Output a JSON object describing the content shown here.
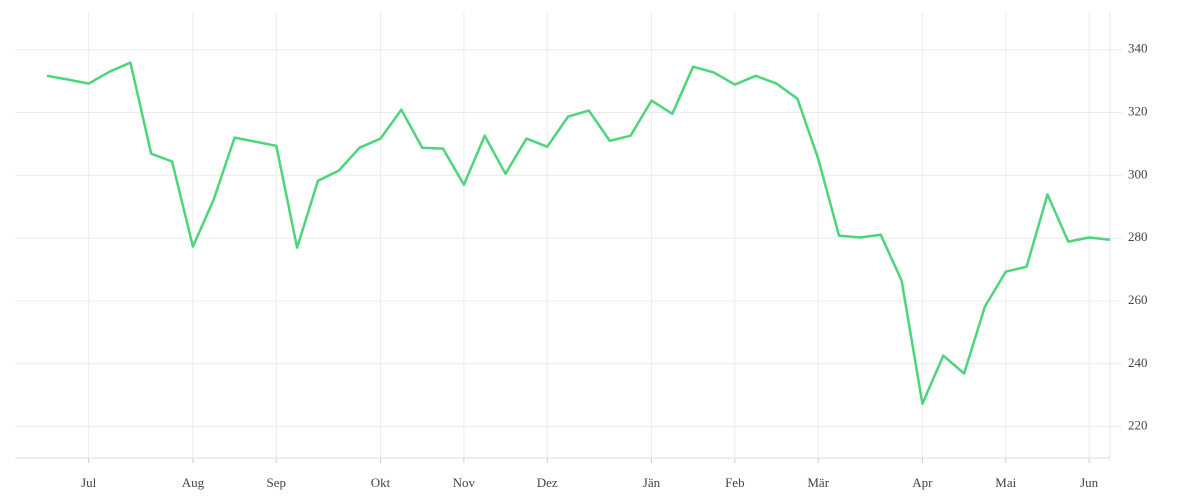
{
  "chart_data": {
    "type": "line",
    "categories": [
      null,
      null,
      "Jul",
      null,
      null,
      null,
      null,
      "Aug",
      null,
      null,
      null,
      "Sep",
      null,
      null,
      null,
      null,
      "Okt",
      null,
      null,
      null,
      "Nov",
      null,
      null,
      null,
      "Dez",
      null,
      null,
      null,
      null,
      "Jän",
      null,
      null,
      null,
      "Feb",
      null,
      null,
      null,
      "Mär",
      null,
      null,
      null,
      null,
      "Apr",
      null,
      null,
      null,
      "Mai",
      null,
      null,
      null,
      "Jun",
      null
    ],
    "series": [
      {
        "color": "#4cd57a",
        "values": [
          331.7,
          330.5,
          329.2,
          333.0,
          335.9,
          306.9,
          304.4,
          277.3,
          292.3,
          312.0,
          310.7,
          309.4,
          277.0,
          298.3,
          301.5,
          308.8,
          311.7,
          320.9,
          308.8,
          308.5,
          297.0,
          312.6,
          300.5,
          311.7,
          309.1,
          318.7,
          320.6,
          311.0,
          312.6,
          323.8,
          319.6,
          334.6,
          332.7,
          328.9,
          331.7,
          329.2,
          324.4,
          305.3,
          280.8,
          280.2,
          281.1,
          266.5,
          227.3,
          242.6,
          236.9,
          258.2,
          269.3,
          270.9,
          293.9,
          278.9,
          280.2,
          279.5
        ]
      }
    ],
    "ylim": [
      210,
      352
    ],
    "yticks": [
      220,
      240,
      260,
      280,
      300,
      320,
      340
    ],
    "grid": true
  }
}
